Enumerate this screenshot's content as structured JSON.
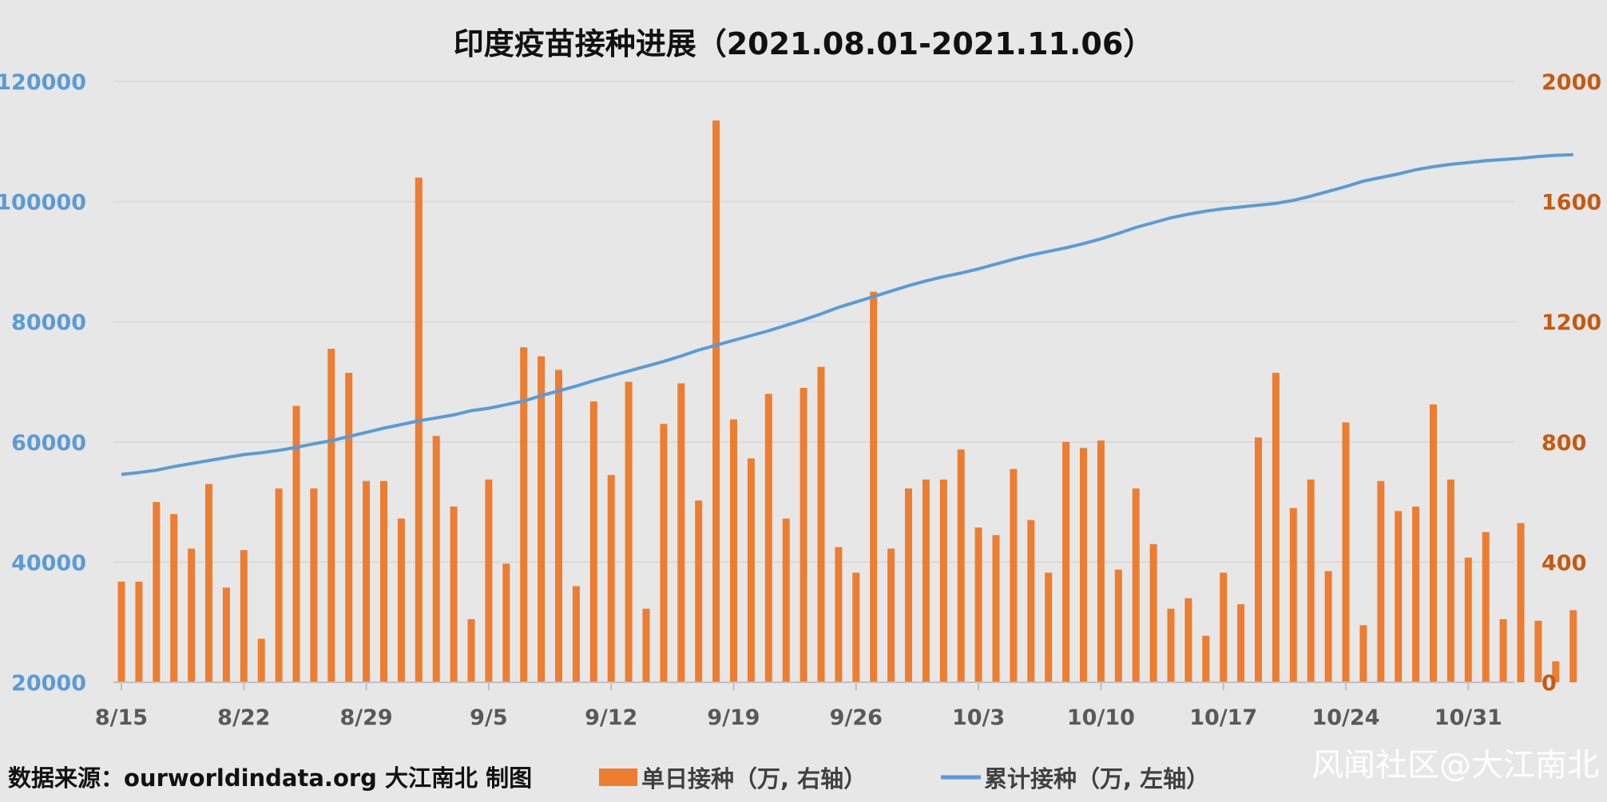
{
  "chart_data": {
    "type": "bar+line",
    "title": "印度疫苗接种进展（2021.08.01-2021.11.06）",
    "x_tick_labels": [
      "8/15",
      "8/22",
      "8/29",
      "9/5",
      "9/12",
      "9/19",
      "9/26",
      "10/3",
      "10/10",
      "10/17",
      "10/24",
      "10/31"
    ],
    "left_axis": {
      "ylim": [
        20000,
        120000
      ],
      "ticks": [
        20000,
        40000,
        60000,
        80000,
        100000,
        120000
      ],
      "color": "#5b9bd5"
    },
    "right_axis": {
      "ylim": [
        0,
        2000
      ],
      "ticks": [
        0,
        400,
        800,
        1200,
        1600,
        2000
      ],
      "color": "#c55a11"
    },
    "grid": true,
    "series": [
      {
        "name": "单日接种（万, 右轴）",
        "type": "bar",
        "axis": "right",
        "color": "#ed7d31",
        "values": [
          335,
          335,
          600,
          560,
          445,
          660,
          315,
          440,
          145,
          645,
          920,
          645,
          1110,
          1030,
          670,
          670,
          545,
          1680,
          820,
          585,
          210,
          675,
          395,
          1115,
          1085,
          1040,
          320,
          935,
          690,
          1000,
          245,
          860,
          995,
          605,
          1870,
          875,
          745,
          960,
          545,
          980,
          1050,
          450,
          365,
          1300,
          445,
          645,
          675,
          675,
          775,
          515,
          490,
          710,
          540,
          365,
          800,
          780,
          805,
          375,
          645,
          460,
          245,
          280,
          155,
          365,
          260,
          815,
          1030,
          580,
          675,
          370,
          865,
          190,
          670,
          570,
          585,
          925,
          675,
          415,
          500,
          210,
          530,
          205,
          70,
          240
        ]
      },
      {
        "name": "累计接种（万, 左轴）",
        "type": "line",
        "axis": "left",
        "color": "#5b9bd5",
        "values": [
          54600,
          54900,
          55300,
          55900,
          56400,
          56900,
          57400,
          57900,
          58200,
          58600,
          59100,
          59700,
          60200,
          60900,
          61600,
          62300,
          62900,
          63500,
          64000,
          64500,
          65200,
          65600,
          66200,
          66800,
          67700,
          68500,
          69300,
          70200,
          71000,
          71800,
          72600,
          73400,
          74300,
          75300,
          76100,
          76900,
          77700,
          78500,
          79400,
          80300,
          81300,
          82400,
          83300,
          84200,
          85100,
          86000,
          86800,
          87500,
          88100,
          88800,
          89600,
          90400,
          91100,
          91700,
          92300,
          93000,
          93800,
          94700,
          95700,
          96500,
          97300,
          97900,
          98400,
          98800,
          99100,
          99400,
          99700,
          100200,
          100900,
          101700,
          102500,
          103400,
          104000,
          104600,
          105300,
          105800,
          106200,
          106500,
          106800,
          107000,
          107200,
          107500,
          107700,
          107800
        ]
      }
    ]
  },
  "source_text": "数据来源：ourworldindata.org 大江南北 制图",
  "watermark_text": "风闻社区@大江南北"
}
